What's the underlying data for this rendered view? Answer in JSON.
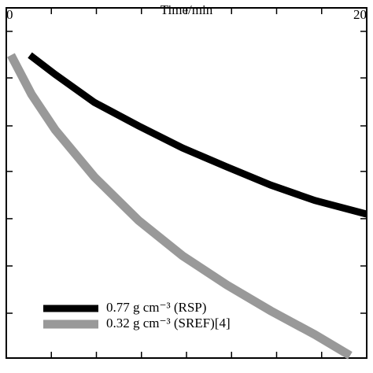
{
  "chart_data": {
    "type": "line",
    "x_label": "Time/min",
    "xlim": [
      0,
      20
    ],
    "xticks": [
      0,
      20
    ],
    "xminor": [
      2.5,
      5,
      7.5,
      10,
      12.5,
      15,
      17.5
    ],
    "ylim": [
      0,
      1
    ],
    "yminor": [
      0.067,
      0.2,
      0.337,
      0.467,
      0.602,
      0.737,
      0.872
    ],
    "flipped_vertically": true,
    "series": [
      {
        "name": "0.77 g cm⁻³ (RSP)",
        "color": "#000000",
        "x": [
          1.31,
          2.71,
          4.89,
          7.34,
          9.78,
          12.23,
          14.67,
          17.12,
          20
        ],
        "values": [
          0.135,
          0.19,
          0.27,
          0.337,
          0.4,
          0.454,
          0.506,
          0.55,
          0.589
        ]
      },
      {
        "name": "0.32 g cm⁻³ (SREF)[4]",
        "color": "#999999",
        "x": [
          0.26,
          1.4,
          2.71,
          4.89,
          7.34,
          9.78,
          12.23,
          14.67,
          17.12,
          19.08
        ],
        "values": [
          0.135,
          0.247,
          0.348,
          0.483,
          0.607,
          0.708,
          0.791,
          0.865,
          0.933,
          0.993
        ]
      }
    ]
  }
}
